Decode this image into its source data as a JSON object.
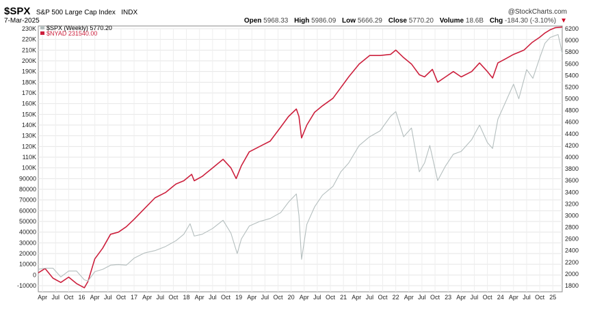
{
  "header": {
    "symbol": "$SPX",
    "description": "S&P 500 Large Cap Index",
    "exchange": "INDX",
    "date": "7-Mar-2025",
    "watermark": "@StockCharts.com",
    "open_label": "Open",
    "open": "5968.33",
    "high_label": "High",
    "high": "5986.09",
    "low_label": "Low",
    "low": "5666.29",
    "close_label": "Close",
    "close": "5770.20",
    "volume_label": "Volume",
    "volume": "18.6B",
    "chg_label": "Chg",
    "chg": "-184.30 (-3.10%)",
    "chg_arrow": "▼"
  },
  "legend": {
    "spx": "$SPX (Weekly) 5770.20",
    "nyad": "$NYAD 231540.00"
  },
  "colors": {
    "spx": "#b4bebe",
    "nyad": "#cc1f3c",
    "chg": "#cc0022"
  },
  "chart_data": {
    "type": "line",
    "x_ticks": [
      "Apr",
      "Jul",
      "Oct",
      "16",
      "Apr",
      "Jul",
      "Oct",
      "17",
      "Apr",
      "Jul",
      "Oct",
      "18",
      "Apr",
      "Jul",
      "Oct",
      "19",
      "Apr",
      "Jul",
      "Oct",
      "20",
      "Apr",
      "Jul",
      "Oct",
      "21",
      "Apr",
      "Jul",
      "Oct",
      "22",
      "Apr",
      "Jul",
      "Oct",
      "23",
      "Apr",
      "Jul",
      "Oct",
      "24",
      "Apr",
      "Jul",
      "Oct",
      "25"
    ],
    "left_axis": {
      "ticks": [
        "-10000",
        "0",
        "10000",
        "20000",
        "30000",
        "40000",
        "50000",
        "60000",
        "70000",
        "80000",
        "90000",
        "100K",
        "110K",
        "120K",
        "130K",
        "140K",
        "150K",
        "160K",
        "170K",
        "180K",
        "190K",
        "200K",
        "210K",
        "220K",
        "230K"
      ],
      "ylim": [
        -10000,
        230000
      ]
    },
    "right_axis": {
      "ticks": [
        "1800",
        "2000",
        "2200",
        "2400",
        "2600",
        "2800",
        "3000",
        "3200",
        "3400",
        "3600",
        "3800",
        "4000",
        "4200",
        "4400",
        "4600",
        "4800",
        "5000",
        "5200",
        "5400",
        "5600",
        "5800",
        "6000",
        "6200"
      ],
      "ylim": [
        1800,
        6200
      ]
    },
    "x_start": 2015.17,
    "x_end": 2025.18,
    "series": [
      {
        "name": "$NYAD",
        "axis": "left",
        "points": [
          [
            2015.17,
            2000
          ],
          [
            2015.3,
            6000
          ],
          [
            2015.45,
            -3000
          ],
          [
            2015.6,
            -7000
          ],
          [
            2015.75,
            -2000
          ],
          [
            2015.9,
            -8000
          ],
          [
            2016.05,
            -12000
          ],
          [
            2016.12,
            -6000
          ],
          [
            2016.25,
            15000
          ],
          [
            2016.4,
            25000
          ],
          [
            2016.55,
            38000
          ],
          [
            2016.7,
            40000
          ],
          [
            2016.85,
            45000
          ],
          [
            2017.0,
            52000
          ],
          [
            2017.2,
            62000
          ],
          [
            2017.4,
            72000
          ],
          [
            2017.6,
            77000
          ],
          [
            2017.8,
            85000
          ],
          [
            2017.95,
            88000
          ],
          [
            2018.1,
            94000
          ],
          [
            2018.15,
            88000
          ],
          [
            2018.3,
            92000
          ],
          [
            2018.5,
            100000
          ],
          [
            2018.7,
            108000
          ],
          [
            2018.85,
            100000
          ],
          [
            2018.95,
            90000
          ],
          [
            2019.05,
            102000
          ],
          [
            2019.2,
            115000
          ],
          [
            2019.4,
            120000
          ],
          [
            2019.6,
            125000
          ],
          [
            2019.8,
            138000
          ],
          [
            2019.95,
            148000
          ],
          [
            2020.1,
            155000
          ],
          [
            2020.15,
            148000
          ],
          [
            2020.2,
            128000
          ],
          [
            2020.3,
            140000
          ],
          [
            2020.45,
            152000
          ],
          [
            2020.6,
            158000
          ],
          [
            2020.8,
            165000
          ],
          [
            2020.95,
            175000
          ],
          [
            2021.1,
            185000
          ],
          [
            2021.3,
            197000
          ],
          [
            2021.5,
            205000
          ],
          [
            2021.7,
            205000
          ],
          [
            2021.9,
            206000
          ],
          [
            2022.0,
            210000
          ],
          [
            2022.15,
            203000
          ],
          [
            2022.3,
            197000
          ],
          [
            2022.45,
            187000
          ],
          [
            2022.55,
            185000
          ],
          [
            2022.7,
            192000
          ],
          [
            2022.8,
            180000
          ],
          [
            2022.95,
            185000
          ],
          [
            2023.1,
            190000
          ],
          [
            2023.25,
            185000
          ],
          [
            2023.45,
            190000
          ],
          [
            2023.6,
            198000
          ],
          [
            2023.75,
            190000
          ],
          [
            2023.85,
            184000
          ],
          [
            2023.95,
            198000
          ],
          [
            2024.1,
            202000
          ],
          [
            2024.25,
            206000
          ],
          [
            2024.45,
            210000
          ],
          [
            2024.6,
            217000
          ],
          [
            2024.75,
            222000
          ],
          [
            2024.85,
            226000
          ],
          [
            2024.95,
            229000
          ],
          [
            2025.05,
            231000
          ],
          [
            2025.18,
            231540
          ]
        ]
      },
      {
        "name": "$SPX (Weekly)",
        "axis": "right",
        "points": [
          [
            2015.17,
            2080
          ],
          [
            2015.3,
            2100
          ],
          [
            2015.45,
            2100
          ],
          [
            2015.6,
            1950
          ],
          [
            2015.75,
            2050
          ],
          [
            2015.9,
            2050
          ],
          [
            2016.05,
            1900
          ],
          [
            2016.12,
            1880
          ],
          [
            2016.25,
            2040
          ],
          [
            2016.4,
            2080
          ],
          [
            2016.55,
            2150
          ],
          [
            2016.7,
            2160
          ],
          [
            2016.85,
            2150
          ],
          [
            2017.0,
            2270
          ],
          [
            2017.2,
            2360
          ],
          [
            2017.4,
            2400
          ],
          [
            2017.6,
            2470
          ],
          [
            2017.8,
            2570
          ],
          [
            2017.95,
            2680
          ],
          [
            2018.07,
            2860
          ],
          [
            2018.15,
            2650
          ],
          [
            2018.3,
            2680
          ],
          [
            2018.5,
            2780
          ],
          [
            2018.7,
            2920
          ],
          [
            2018.85,
            2700
          ],
          [
            2018.97,
            2350
          ],
          [
            2019.05,
            2600
          ],
          [
            2019.2,
            2820
          ],
          [
            2019.4,
            2900
          ],
          [
            2019.6,
            2950
          ],
          [
            2019.8,
            3050
          ],
          [
            2019.95,
            3230
          ],
          [
            2020.1,
            3370
          ],
          [
            2020.15,
            3000
          ],
          [
            2020.2,
            2250
          ],
          [
            2020.3,
            2850
          ],
          [
            2020.45,
            3150
          ],
          [
            2020.6,
            3350
          ],
          [
            2020.8,
            3500
          ],
          [
            2020.95,
            3750
          ],
          [
            2021.1,
            3900
          ],
          [
            2021.3,
            4200
          ],
          [
            2021.5,
            4350
          ],
          [
            2021.7,
            4450
          ],
          [
            2021.9,
            4700
          ],
          [
            2022.0,
            4780
          ],
          [
            2022.15,
            4350
          ],
          [
            2022.3,
            4500
          ],
          [
            2022.45,
            3750
          ],
          [
            2022.55,
            3900
          ],
          [
            2022.65,
            4200
          ],
          [
            2022.8,
            3600
          ],
          [
            2022.95,
            3850
          ],
          [
            2023.1,
            4050
          ],
          [
            2023.25,
            4100
          ],
          [
            2023.45,
            4300
          ],
          [
            2023.6,
            4550
          ],
          [
            2023.75,
            4250
          ],
          [
            2023.85,
            4150
          ],
          [
            2023.95,
            4650
          ],
          [
            2024.1,
            4950
          ],
          [
            2024.25,
            5250
          ],
          [
            2024.35,
            5000
          ],
          [
            2024.5,
            5500
          ],
          [
            2024.62,
            5350
          ],
          [
            2024.75,
            5700
          ],
          [
            2024.85,
            5950
          ],
          [
            2024.95,
            6050
          ],
          [
            2025.1,
            6100
          ],
          [
            2025.14,
            5950
          ],
          [
            2025.18,
            5770
          ]
        ]
      }
    ]
  }
}
